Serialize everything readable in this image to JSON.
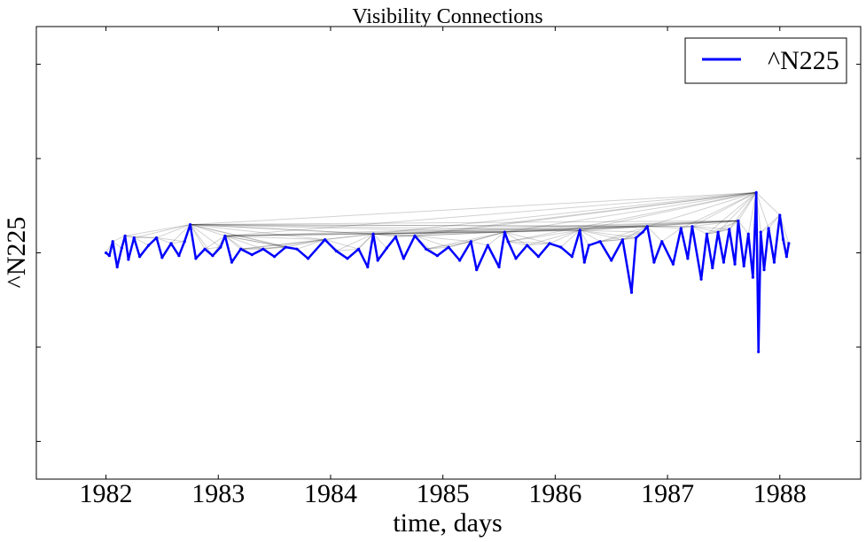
{
  "chart_data": {
    "type": "line",
    "title": "Visibility Connections",
    "xlabel": "time, days",
    "ylabel": "^N225",
    "x_ticks": [
      "1982",
      "1983",
      "1984",
      "1985",
      "1986",
      "1987",
      "1988"
    ],
    "xlim": [
      1981.38,
      1988.72
    ],
    "ylim": [
      -0.24,
      0.24
    ],
    "grid": false,
    "legend": {
      "position": "top-right",
      "entries": [
        {
          "label": "^N225",
          "color": "#0000ff"
        }
      ]
    },
    "series": [
      {
        "name": "^N225",
        "color": "#0000ff",
        "x": [
          1982.0,
          1982.03,
          1982.06,
          1982.1,
          1982.14,
          1982.17,
          1982.2,
          1982.25,
          1982.3,
          1982.38,
          1982.45,
          1982.5,
          1982.58,
          1982.65,
          1982.7,
          1982.75,
          1982.8,
          1982.88,
          1982.95,
          1983.02,
          1983.06,
          1983.12,
          1983.2,
          1983.3,
          1983.4,
          1983.5,
          1983.6,
          1983.7,
          1983.8,
          1983.95,
          1984.05,
          1984.15,
          1984.25,
          1984.33,
          1984.38,
          1984.42,
          1984.5,
          1984.58,
          1984.65,
          1984.75,
          1984.85,
          1984.95,
          1985.05,
          1985.15,
          1985.25,
          1985.3,
          1985.4,
          1985.5,
          1985.55,
          1985.58,
          1985.65,
          1985.75,
          1985.85,
          1985.95,
          1986.05,
          1986.15,
          1986.22,
          1986.26,
          1986.3,
          1986.4,
          1986.5,
          1986.6,
          1986.68,
          1986.72,
          1986.78,
          1986.82,
          1986.88,
          1986.95,
          1987.05,
          1987.12,
          1987.18,
          1987.22,
          1987.3,
          1987.35,
          1987.4,
          1987.45,
          1987.5,
          1987.55,
          1987.6,
          1987.63,
          1987.68,
          1987.72,
          1987.76,
          1987.79,
          1987.81,
          1987.83,
          1987.86,
          1987.9,
          1987.95,
          1988.0,
          1988.03,
          1988.06,
          1988.08
        ],
        "y": [
          0.0,
          -0.003,
          0.012,
          -0.015,
          0.005,
          0.018,
          -0.007,
          0.016,
          -0.004,
          0.008,
          0.016,
          -0.005,
          0.01,
          -0.003,
          0.012,
          0.03,
          -0.006,
          0.004,
          -0.003,
          0.006,
          0.018,
          -0.01,
          0.004,
          -0.002,
          0.004,
          -0.004,
          0.006,
          0.004,
          -0.006,
          0.014,
          0.002,
          -0.006,
          0.004,
          -0.015,
          0.02,
          -0.008,
          0.005,
          0.017,
          -0.006,
          0.018,
          0.004,
          -0.003,
          0.006,
          -0.008,
          0.012,
          -0.018,
          0.008,
          -0.015,
          0.022,
          0.012,
          -0.006,
          0.008,
          -0.004,
          0.01,
          0.006,
          -0.004,
          0.024,
          -0.01,
          0.008,
          0.012,
          -0.008,
          0.014,
          -0.042,
          0.016,
          0.022,
          0.028,
          -0.01,
          0.012,
          -0.012,
          0.026,
          -0.006,
          0.028,
          -0.028,
          0.02,
          -0.016,
          0.022,
          -0.01,
          0.025,
          -0.012,
          0.034,
          -0.014,
          0.02,
          -0.026,
          0.064,
          -0.105,
          0.022,
          -0.018,
          0.026,
          -0.01,
          0.04,
          0.014,
          -0.004,
          0.01
        ]
      }
    ]
  }
}
